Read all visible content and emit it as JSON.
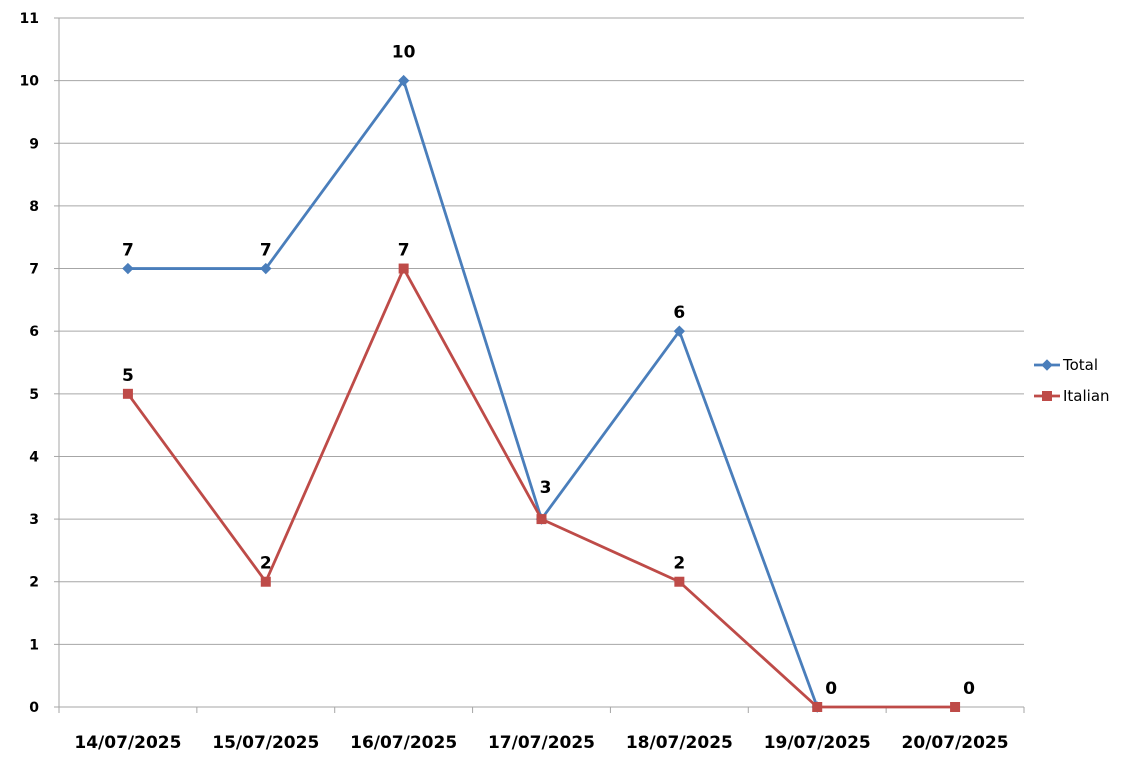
{
  "chart_data": {
    "type": "line",
    "categories": [
      "14/07/2025",
      "15/07/2025",
      "16/07/2025",
      "17/07/2025",
      "18/07/2025",
      "19/07/2025",
      "20/07/2025"
    ],
    "series": [
      {
        "name": "Total",
        "values": [
          7,
          7,
          10,
          3,
          6,
          0,
          null
        ],
        "color": "#4a7ebb",
        "marker": "diamond"
      },
      {
        "name": "Italian",
        "values": [
          5,
          2,
          7,
          3,
          2,
          0,
          0
        ],
        "color": "#be4b48",
        "marker": "square"
      }
    ],
    "data_labels": [
      {
        "category": "14/07/2025",
        "value": 7,
        "text": "7"
      },
      {
        "category": "15/07/2025",
        "value": 7,
        "text": "7"
      },
      {
        "category": "16/07/2025",
        "value": 10,
        "text": "10"
      },
      {
        "category": "17/07/2025",
        "value": 3,
        "text": "3"
      },
      {
        "category": "18/07/2025",
        "value": 6,
        "text": "6"
      },
      {
        "category": "19/07/2025",
        "value": 0,
        "text": "0"
      },
      {
        "category": "20/07/2025",
        "value": 0,
        "text": "0"
      },
      {
        "category": "14/07/2025",
        "value": 5,
        "text": "5"
      },
      {
        "category": "15/07/2025",
        "value": 2,
        "text": "2"
      },
      {
        "category": "16/07/2025",
        "value": 7,
        "text": "7"
      },
      {
        "category": "18/07/2025",
        "value": 2,
        "text": "2"
      }
    ],
    "yticks": [
      "0",
      "1",
      "2",
      "3",
      "4",
      "5",
      "6",
      "7",
      "8",
      "9",
      "10",
      "11"
    ],
    "ylim": [
      0,
      11
    ],
    "grid": true,
    "legend": "right",
    "title": "",
    "xlabel": "",
    "ylabel": ""
  }
}
